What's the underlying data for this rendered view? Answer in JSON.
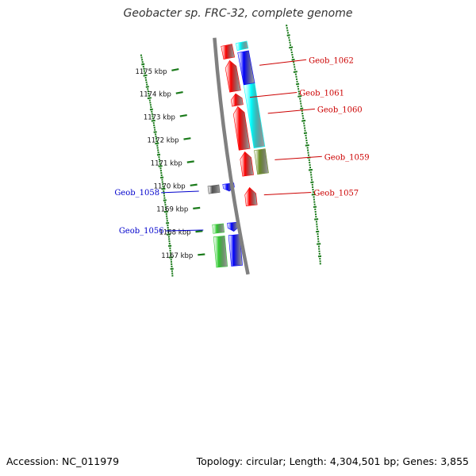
{
  "title": "Geobacter sp. FRC-32, complete genome",
  "footer": {
    "accession": "Accession: NC_011979",
    "topology": "Topology: circular; Length: 4,304,501 bp; Genes: 3,855"
  },
  "colors": {
    "backbone": "#808080",
    "tick": "#1a7a1a",
    "forward_label": "#cc0000",
    "reverse_label": "#0000cc",
    "green": "#33cc33",
    "blue": "#0000ff",
    "red": "#ff0000",
    "olive": "#6b8e23",
    "cyan": "#00ffff",
    "gray": "#555555"
  },
  "ticks": [
    {
      "kbp": 1167,
      "label": "1167 kbp"
    },
    {
      "kbp": 1168,
      "label": "1168 kbp"
    },
    {
      "kbp": 1169,
      "label": "1169 kbp"
    },
    {
      "kbp": 1170,
      "label": "1170 kbp"
    },
    {
      "kbp": 1171,
      "label": "1171 kbp"
    },
    {
      "kbp": 1172,
      "label": "1172 kbp"
    },
    {
      "kbp": 1173,
      "label": "1173 kbp"
    },
    {
      "kbp": 1174,
      "label": "1174 kbp"
    },
    {
      "kbp": 1175,
      "label": "1175 kbp"
    }
  ],
  "genes": [
    {
      "name": "",
      "lane": "revOuter",
      "color": "green",
      "start": 1166.4,
      "end": 1167.7,
      "dir": 0
    },
    {
      "name": "",
      "lane": "revInner",
      "color": "blue",
      "start": 1166.4,
      "end": 1167.7,
      "dir": 0
    },
    {
      "name": "Geob_1056",
      "lane": "revOuter",
      "color": "green",
      "start": 1167.85,
      "end": 1168.22,
      "dir": 0,
      "labelSide": "left"
    },
    {
      "name": "",
      "lane": "revInner",
      "color": "blue",
      "start": 1167.85,
      "end": 1168.22,
      "dir": -1
    },
    {
      "name": "Geob_1057",
      "lane": "fwdInner",
      "color": "red",
      "start": 1168.85,
      "end": 1169.6,
      "dir": 1,
      "labelSide": "right"
    },
    {
      "name": "Geob_1058",
      "lane": "revOuter",
      "color": "gray",
      "start": 1169.55,
      "end": 1169.87,
      "dir": 0,
      "labelSide": "left"
    },
    {
      "name": "",
      "lane": "revInner",
      "color": "blue",
      "start": 1169.55,
      "end": 1169.87,
      "dir": -1
    },
    {
      "name": "",
      "lane": "fwdInner",
      "color": "red",
      "start": 1170.1,
      "end": 1171.1,
      "dir": 1
    },
    {
      "name": "Geob_1059",
      "lane": "fwdOuter",
      "color": "olive",
      "start": 1170.1,
      "end": 1171.1,
      "dir": 0,
      "labelSide": "right"
    },
    {
      "name": "",
      "lane": "fwdInner",
      "color": "red",
      "start": 1171.2,
      "end": 1173.0,
      "dir": 1
    },
    {
      "name": "Geob_1060",
      "lane": "fwdOuter",
      "color": "cyan",
      "start": 1171.2,
      "end": 1173.85,
      "dir": 0,
      "labelSide": "right"
    },
    {
      "name": "Geob_1061",
      "lane": "fwdInner",
      "color": "red",
      "start": 1173.05,
      "end": 1173.55,
      "dir": 1,
      "labelSide": "right"
    },
    {
      "name": "",
      "lane": "fwdInner",
      "color": "red",
      "start": 1173.65,
      "end": 1174.95,
      "dir": 1
    },
    {
      "name": "Geob_1062",
      "lane": "fwdOuter",
      "color": "blue",
      "start": 1173.85,
      "end": 1175.2,
      "dir": 0,
      "labelSide": "right"
    },
    {
      "name": "",
      "lane": "fwdInner",
      "color": "red",
      "start": 1175.05,
      "end": 1175.6,
      "dir": 0
    },
    {
      "name": "",
      "lane": "fwdOuter",
      "color": "cyan",
      "start": 1175.3,
      "end": 1175.6,
      "dir": 0
    }
  ]
}
